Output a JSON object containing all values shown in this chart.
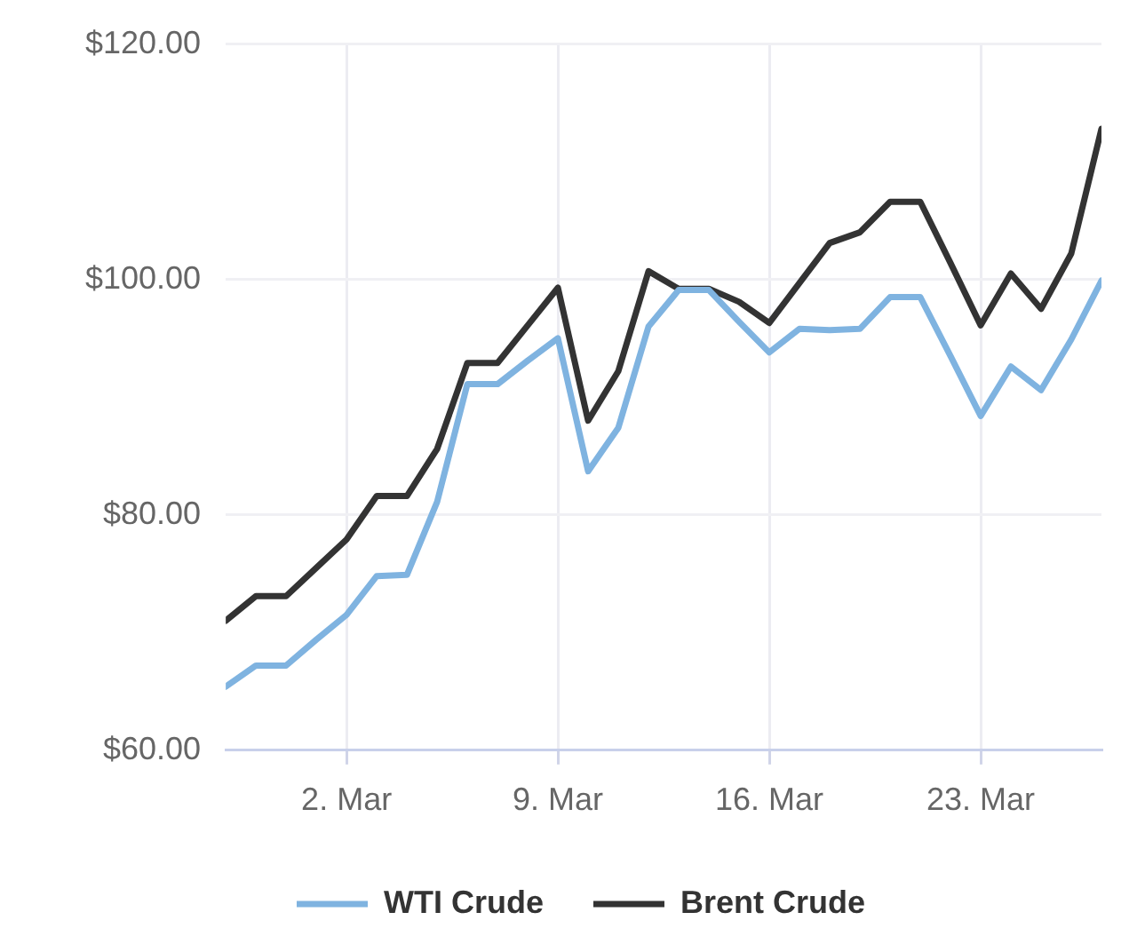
{
  "chart_data": {
    "type": "line",
    "x": [
      "--02-26",
      "--02-27",
      "--02-28",
      "--03-01",
      "--03-02",
      "--03-03",
      "--03-04",
      "--03-05",
      "--03-06",
      "--03-07",
      "--03-08",
      "--03-09",
      "--03-10",
      "--03-11",
      "--03-12",
      "--03-13",
      "--03-14",
      "--03-15",
      "--03-16",
      "--03-17",
      "--03-18",
      "--03-19",
      "--03-20",
      "--03-21",
      "--03-22",
      "--03-23",
      "--03-24",
      "--03-25",
      "--03-26",
      "--03-27"
    ],
    "series": [
      {
        "name": "WTI Crude",
        "color": "#7fb3e0",
        "values": [
          65.4,
          67.2,
          67.2,
          69.4,
          71.5,
          74.8,
          74.9,
          81.1,
          91.1,
          91.1,
          93.1,
          95.0,
          83.7,
          87.4,
          96.0,
          99.1,
          99.1,
          96.4,
          93.8,
          95.8,
          95.7,
          95.8,
          98.5,
          98.5,
          93.5,
          88.4,
          92.6,
          90.6,
          94.9,
          99.9
        ]
      },
      {
        "name": "Brent Crude",
        "color": "#333333",
        "values": [
          71.0,
          73.1,
          73.1,
          75.5,
          77.9,
          81.6,
          81.6,
          85.6,
          92.9,
          92.9,
          96.1,
          99.3,
          88.0,
          92.2,
          100.7,
          99.2,
          99.2,
          98.1,
          96.3,
          99.7,
          103.1,
          104.0,
          106.6,
          106.6,
          101.4,
          96.1,
          100.5,
          97.5,
          102.2,
          112.8
        ]
      }
    ],
    "xlim": [
      "--02-26",
      "--03-27"
    ],
    "xticks": [
      {
        "value": "--03-02",
        "label": "2. Mar"
      },
      {
        "value": "--03-09",
        "label": "9. Mar"
      },
      {
        "value": "--03-16",
        "label": "16. Mar"
      },
      {
        "value": "--03-23",
        "label": "23. Mar"
      }
    ],
    "ylim": [
      60,
      120
    ],
    "yticks": [
      {
        "value": 60,
        "label": "$60.00"
      },
      {
        "value": 80,
        "label": "$80.00"
      },
      {
        "value": 100,
        "label": "$100.00"
      },
      {
        "value": 120,
        "label": "$120.00"
      }
    ],
    "grid": true,
    "legend": "bottom"
  }
}
